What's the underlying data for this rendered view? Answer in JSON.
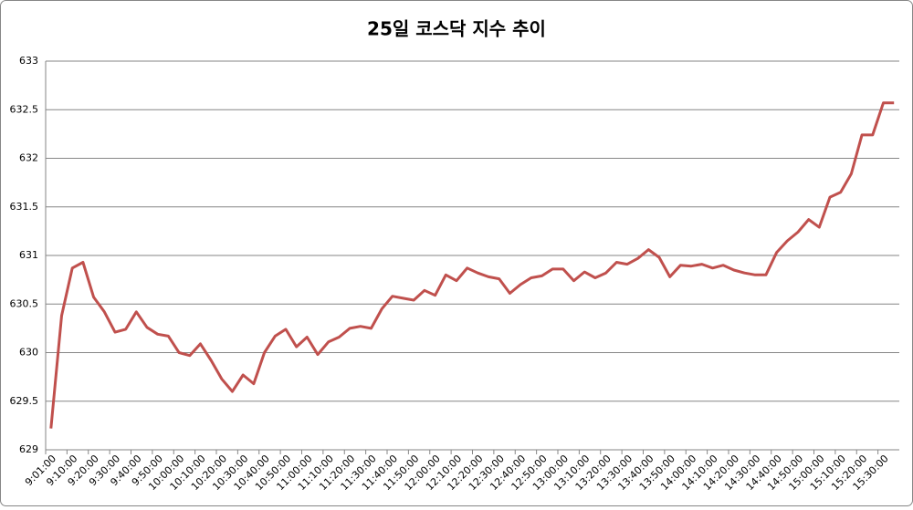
{
  "chart_data": {
    "type": "line",
    "title": "25일 코스닥 지수 추이",
    "categories": [
      "9:01:00",
      null,
      "9:10:00",
      null,
      "9:20:00",
      null,
      "9:30:00",
      null,
      "9:40:00",
      null,
      "9:50:00",
      null,
      "10:00:00",
      null,
      "10:10:00",
      null,
      "10:20:00",
      null,
      "10:30:00",
      null,
      "10:40:00",
      null,
      "10:50:00",
      null,
      "11:00:00",
      null,
      "11:10:00",
      null,
      "11:20:00",
      null,
      "11:30:00",
      null,
      "11:40:00",
      null,
      "11:50:00",
      null,
      "12:00:00",
      null,
      "12:10:00",
      null,
      "12:20:00",
      null,
      "12:30:00",
      null,
      "12:40:00",
      null,
      "12:50:00",
      null,
      "13:00:00",
      null,
      "13:10:00",
      null,
      "13:20:00",
      null,
      "13:30:00",
      null,
      "13:40:00",
      null,
      "13:50:00",
      null,
      "14:00:00",
      null,
      "14:10:00",
      null,
      "14:20:00",
      null,
      "14:30:00",
      null,
      "14:40:00",
      null,
      "14:50:00",
      null,
      "15:00:00",
      null,
      "15:10:00",
      null,
      "15:20:00",
      null,
      "15:30:00",
      null
    ],
    "values": [
      629.22,
      630.38,
      630.87,
      630.93,
      630.57,
      630.42,
      630.21,
      630.24,
      630.42,
      630.26,
      630.19,
      630.17,
      630.0,
      629.97,
      630.09,
      629.92,
      629.73,
      629.6,
      629.77,
      629.68,
      630.0,
      630.17,
      630.24,
      630.06,
      630.16,
      629.98,
      630.11,
      630.16,
      630.25,
      630.27,
      630.25,
      630.45,
      630.58,
      630.56,
      630.54,
      630.64,
      630.59,
      630.8,
      630.74,
      630.87,
      630.82,
      630.78,
      630.76,
      630.61,
      630.7,
      630.77,
      630.79,
      630.86,
      630.86,
      630.74,
      630.83,
      630.77,
      630.82,
      630.93,
      630.91,
      630.97,
      631.06,
      630.98,
      630.78,
      630.9,
      630.89,
      630.91,
      630.87,
      630.9,
      630.85,
      630.82,
      630.8,
      630.8,
      631.03,
      631.15,
      631.24,
      631.37,
      631.29,
      631.6,
      631.65,
      631.84,
      632.24,
      632.24,
      632.57,
      632.57
    ],
    "color": "#c0504d",
    "ylim": [
      629,
      633
    ],
    "yticks": [
      629,
      629.5,
      630,
      630.5,
      631,
      631.5,
      632,
      632.5,
      633
    ],
    "grid": true
  }
}
